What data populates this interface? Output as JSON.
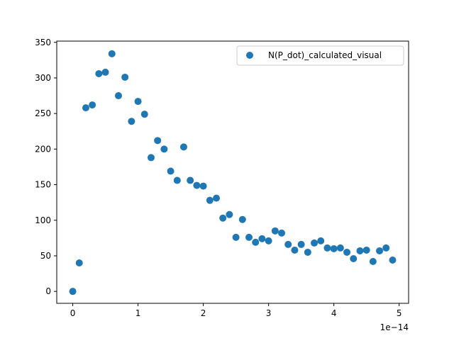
{
  "chart_data": {
    "type": "scatter",
    "title": "",
    "xlabel": "",
    "ylabel": "",
    "x_offset_label": "1e−14",
    "xlim": [
      -0.245,
      5.145
    ],
    "ylim": [
      -16.75,
      351.75
    ],
    "x_ticks": [
      0,
      1,
      2,
      3,
      4,
      5
    ],
    "x_tick_labels": [
      "0",
      "1",
      "2",
      "3",
      "4",
      "5"
    ],
    "y_ticks": [
      0,
      50,
      100,
      150,
      200,
      250,
      300,
      350
    ],
    "y_tick_labels": [
      "0",
      "50",
      "100",
      "150",
      "200",
      "250",
      "300",
      "350"
    ],
    "grid": false,
    "legend_position": "upper right",
    "colors": {
      "marker": "#1f77b4",
      "axes": "#000000",
      "legend_border": "#cccccc"
    },
    "series": [
      {
        "name": "N(P_dot)_calculated_visual",
        "x": [
          0.0,
          0.1,
          0.2,
          0.3,
          0.4,
          0.5,
          0.6,
          0.7,
          0.8,
          0.9,
          1.0,
          1.1,
          1.2,
          1.3,
          1.4,
          1.5,
          1.6,
          1.7,
          1.8,
          1.9,
          2.0,
          2.1,
          2.2,
          2.3,
          2.4,
          2.5,
          2.6,
          2.7,
          2.8,
          2.9,
          3.0,
          3.1,
          3.2,
          3.3,
          3.4,
          3.5,
          3.6,
          3.7,
          3.8,
          3.9,
          4.0,
          4.1,
          4.2,
          4.3,
          4.4,
          4.5,
          4.6,
          4.7,
          4.8,
          4.9
        ],
        "y": [
          0,
          40,
          258,
          262,
          306,
          308,
          334,
          275,
          301,
          239,
          267,
          249,
          188,
          212,
          200,
          169,
          156,
          203,
          156,
          149,
          148,
          128,
          131,
          103,
          108,
          76,
          101,
          76,
          69,
          74,
          71,
          85,
          82,
          66,
          58,
          66,
          55,
          68,
          71,
          61,
          60,
          61,
          55,
          46,
          57,
          58,
          42,
          57,
          61,
          44
        ]
      }
    ]
  }
}
